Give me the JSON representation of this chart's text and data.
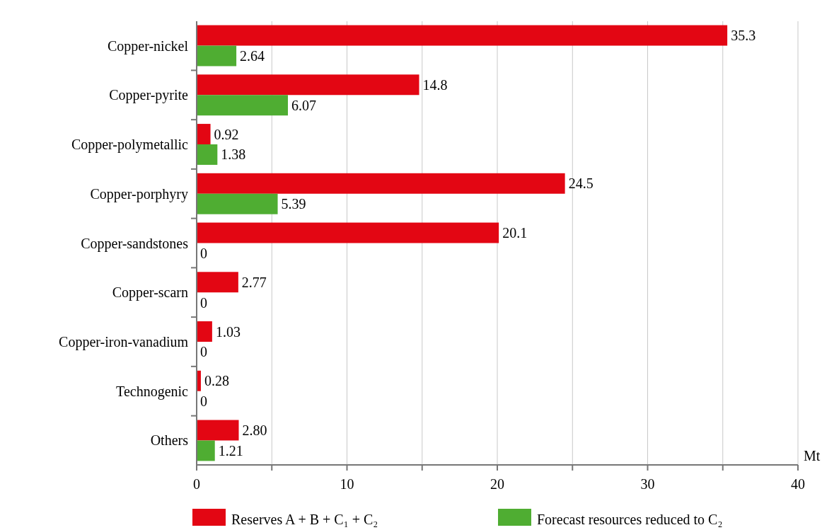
{
  "chart_data": {
    "type": "bar",
    "orientation": "horizontal",
    "xlabel": "Mt",
    "categories": [
      "Copper-nickel",
      "Copper-pyrite",
      "Copper-polymetallic",
      "Copper-porphyry",
      "Copper-sandstones",
      "Copper-scarn",
      "Copper-iron-vanadium",
      "Technogenic",
      "Others"
    ],
    "series": [
      {
        "name": "Reserves A + B + C₁ + C₂",
        "color": "#e30613",
        "values": [
          35.3,
          14.8,
          0.92,
          24.5,
          20.1,
          2.77,
          1.03,
          0.28,
          2.8
        ],
        "value_labels": [
          "35.3",
          "14.8",
          "0.92",
          "24.5",
          "20.1",
          "2.77",
          "1.03",
          "0.28",
          "2.80"
        ]
      },
      {
        "name": "Forecast resources reduced to C₂",
        "color": "#4fad32",
        "values": [
          2.64,
          6.07,
          1.38,
          5.39,
          0,
          0,
          0,
          0,
          1.21
        ],
        "value_labels": [
          "2.64",
          "6.07",
          "1.38",
          "5.39",
          "0",
          "0",
          "0",
          "0",
          "1.21"
        ]
      }
    ],
    "xlim": [
      0,
      40
    ],
    "xticks": [
      0,
      {
        "value": 5,
        "label": null
      },
      10,
      {
        "value": 15,
        "label": null
      },
      20,
      {
        "value": 25,
        "label": null
      },
      30,
      {
        "value": 35,
        "label": null
      },
      40
    ],
    "grid": "x",
    "legend": "bottom"
  }
}
